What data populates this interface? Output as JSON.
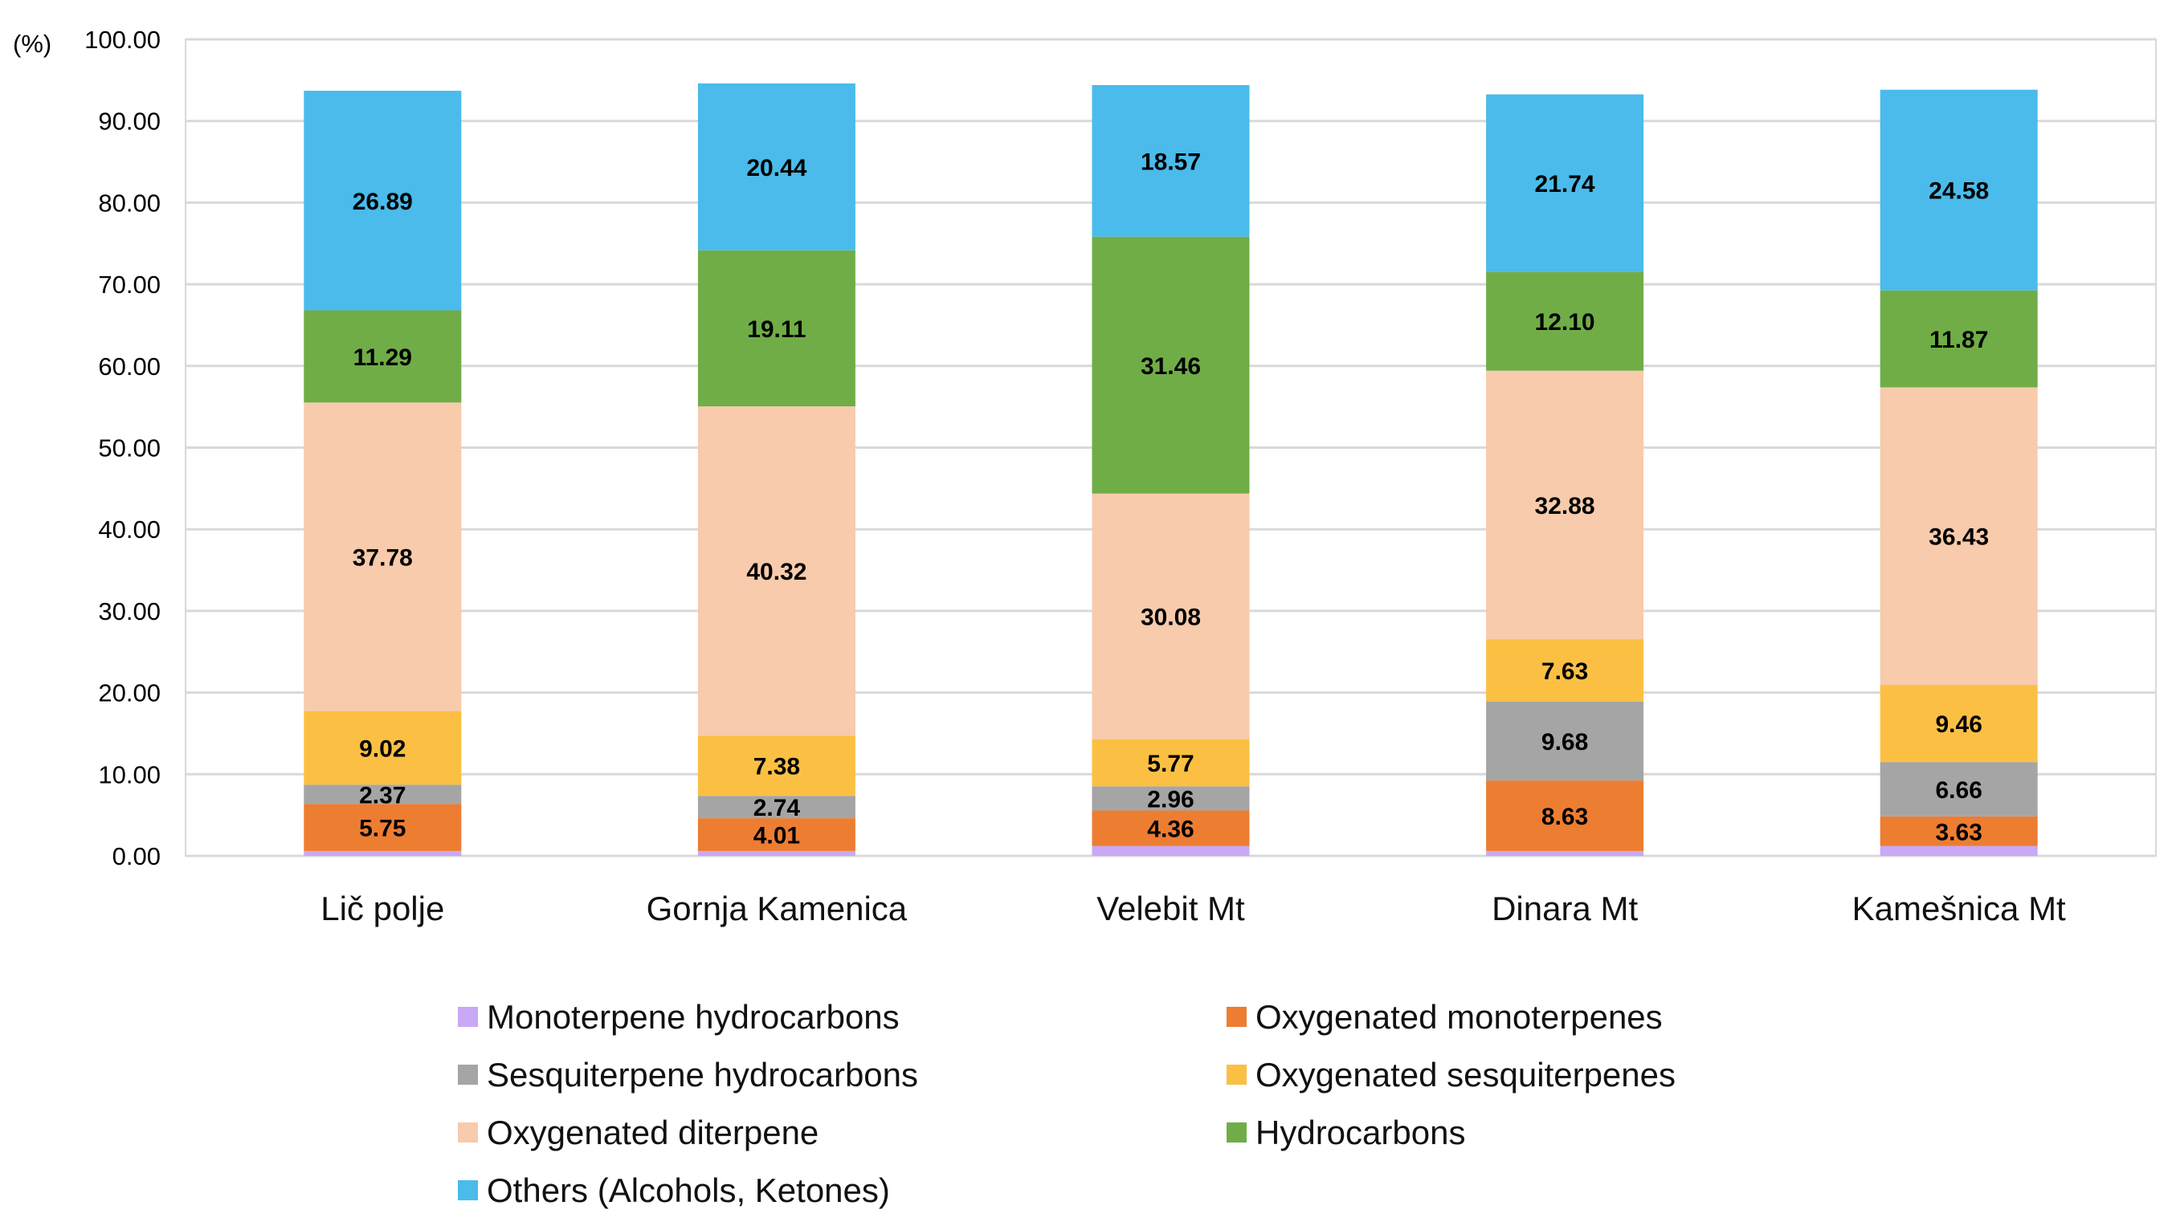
{
  "chart_data": {
    "type": "bar",
    "stacked": true,
    "ylabel": "(%)",
    "ylim": [
      0,
      100
    ],
    "yticks": [
      "0.00",
      "10.00",
      "20.00",
      "30.00",
      "40.00",
      "50.00",
      "60.00",
      "70.00",
      "80.00",
      "90.00",
      "100.00"
    ],
    "grid": true,
    "legend_position": "bottom",
    "categories": [
      "Lič polje",
      "Gornja Kamenica",
      "Velebit Mt",
      "Dinara Mt",
      "Kamešnica Mt"
    ],
    "series": [
      {
        "name": "Monoterpene hydrocarbons",
        "color": "#c9a8f5",
        "values": [
          0.6,
          0.6,
          1.2,
          0.6,
          1.2
        ],
        "labels": false
      },
      {
        "name": "Oxygenated monoterpenes",
        "color": "#ed7d31",
        "values": [
          5.75,
          4.01,
          4.36,
          8.63,
          3.63
        ],
        "labels": true
      },
      {
        "name": "Sesquiterpene hydrocarbons",
        "color": "#a5a5a5",
        "values": [
          2.37,
          2.74,
          2.96,
          9.68,
          6.66
        ],
        "labels": true
      },
      {
        "name": "Oxygenated sesquiterpenes",
        "color": "#fbc043",
        "values": [
          9.02,
          7.38,
          5.77,
          7.63,
          9.46
        ],
        "labels": true
      },
      {
        "name": "Oxygenated diterpene",
        "color": "#f7cbac",
        "values": [
          37.78,
          40.32,
          30.08,
          32.88,
          36.43
        ],
        "labels": true
      },
      {
        "name": "Hydrocarbons",
        "color": "#70ad47",
        "values": [
          11.29,
          19.11,
          31.46,
          12.1,
          11.87
        ],
        "labels": true
      },
      {
        "name": "Others (Alcohols, Ketones)",
        "color": "#4abbea",
        "values": [
          26.89,
          20.44,
          18.57,
          21.74,
          24.58
        ],
        "labels": true
      }
    ]
  }
}
